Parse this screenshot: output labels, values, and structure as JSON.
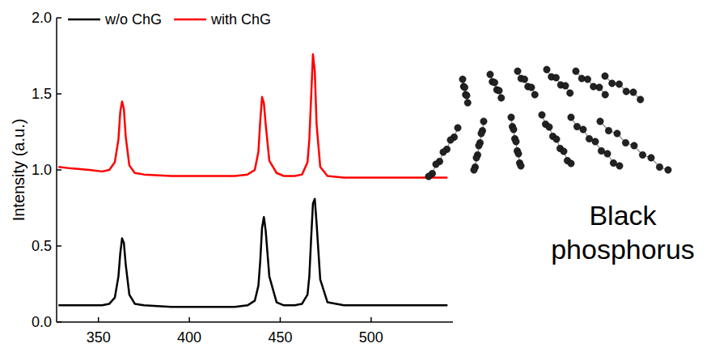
{
  "chart_data": {
    "type": "line",
    "y_label": "Intensity (a.u.)",
    "annotations": [
      "Black phosphorus"
    ],
    "x": [
      328,
      335,
      345,
      352,
      356,
      359,
      361,
      362,
      363,
      364,
      365,
      367,
      370,
      375,
      390,
      410,
      425,
      432,
      436,
      438,
      439,
      440,
      441,
      442,
      444,
      448,
      452,
      458,
      462,
      465,
      466,
      467,
      468,
      469,
      470,
      472,
      476,
      485,
      500,
      520,
      542
    ],
    "series": [
      {
        "name": "w/o ChG",
        "color": "#000000",
        "values": [
          0.11,
          0.11,
          0.11,
          0.11,
          0.12,
          0.16,
          0.3,
          0.45,
          0.55,
          0.52,
          0.38,
          0.18,
          0.12,
          0.11,
          0.1,
          0.1,
          0.1,
          0.11,
          0.14,
          0.24,
          0.4,
          0.62,
          0.69,
          0.6,
          0.3,
          0.13,
          0.11,
          0.11,
          0.12,
          0.18,
          0.3,
          0.55,
          0.78,
          0.81,
          0.65,
          0.28,
          0.13,
          0.11,
          0.11,
          0.11,
          0.11
        ]
      },
      {
        "name": "with ChG",
        "color": "#ff0000",
        "values": [
          1.02,
          1.01,
          1.0,
          0.99,
          1.0,
          1.05,
          1.2,
          1.38,
          1.45,
          1.4,
          1.22,
          1.03,
          0.98,
          0.97,
          0.96,
          0.96,
          0.96,
          0.97,
          1.0,
          1.12,
          1.32,
          1.48,
          1.44,
          1.3,
          1.06,
          0.98,
          0.96,
          0.96,
          0.97,
          1.05,
          1.2,
          1.48,
          1.76,
          1.65,
          1.3,
          1.02,
          0.96,
          0.95,
          0.95,
          0.95,
          0.95
        ]
      }
    ],
    "xlim": [
      327,
      545
    ],
    "xticks": [
      350,
      400,
      450,
      500
    ],
    "ylim": [
      0,
      2
    ],
    "yticks": [
      {
        "value": 0,
        "label": "0.0"
      },
      {
        "value": 0.5,
        "label": "0.5"
      },
      {
        "value": 1,
        "label": "1.0"
      },
      {
        "value": 1.5,
        "label": "1.5"
      },
      {
        "value": 2,
        "label": "2.0"
      }
    ],
    "legend": "upper left"
  }
}
